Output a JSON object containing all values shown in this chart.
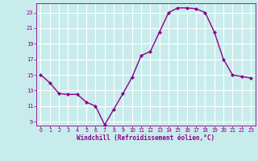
{
  "hours": [
    0,
    1,
    2,
    3,
    4,
    5,
    6,
    7,
    8,
    9,
    10,
    11,
    12,
    13,
    14,
    15,
    16,
    17,
    18,
    19,
    20,
    21,
    22,
    23
  ],
  "values": [
    15.0,
    14.0,
    12.6,
    12.5,
    12.5,
    11.5,
    11.0,
    8.6,
    10.6,
    12.6,
    14.7,
    17.5,
    18.0,
    20.5,
    23.0,
    23.6,
    23.6,
    23.5,
    23.0,
    20.5,
    17.0,
    15.0,
    14.8,
    14.6
  ],
  "xlim": [
    -0.5,
    23.5
  ],
  "ylim": [
    8.5,
    24.2
  ],
  "yticks": [
    9,
    11,
    13,
    15,
    17,
    19,
    21,
    23
  ],
  "xticks": [
    0,
    1,
    2,
    3,
    4,
    5,
    6,
    7,
    8,
    9,
    10,
    11,
    12,
    13,
    14,
    15,
    16,
    17,
    18,
    19,
    20,
    21,
    22,
    23
  ],
  "xlabel": "Windchill (Refroidissement éolien,°C)",
  "line_color": "#8b008b",
  "marker_color": "#8b008b",
  "bg_color": "#c8ecec",
  "grid_color": "#b0d8d8",
  "tick_color": "#8b008b",
  "xlabel_color": "#8b008b"
}
